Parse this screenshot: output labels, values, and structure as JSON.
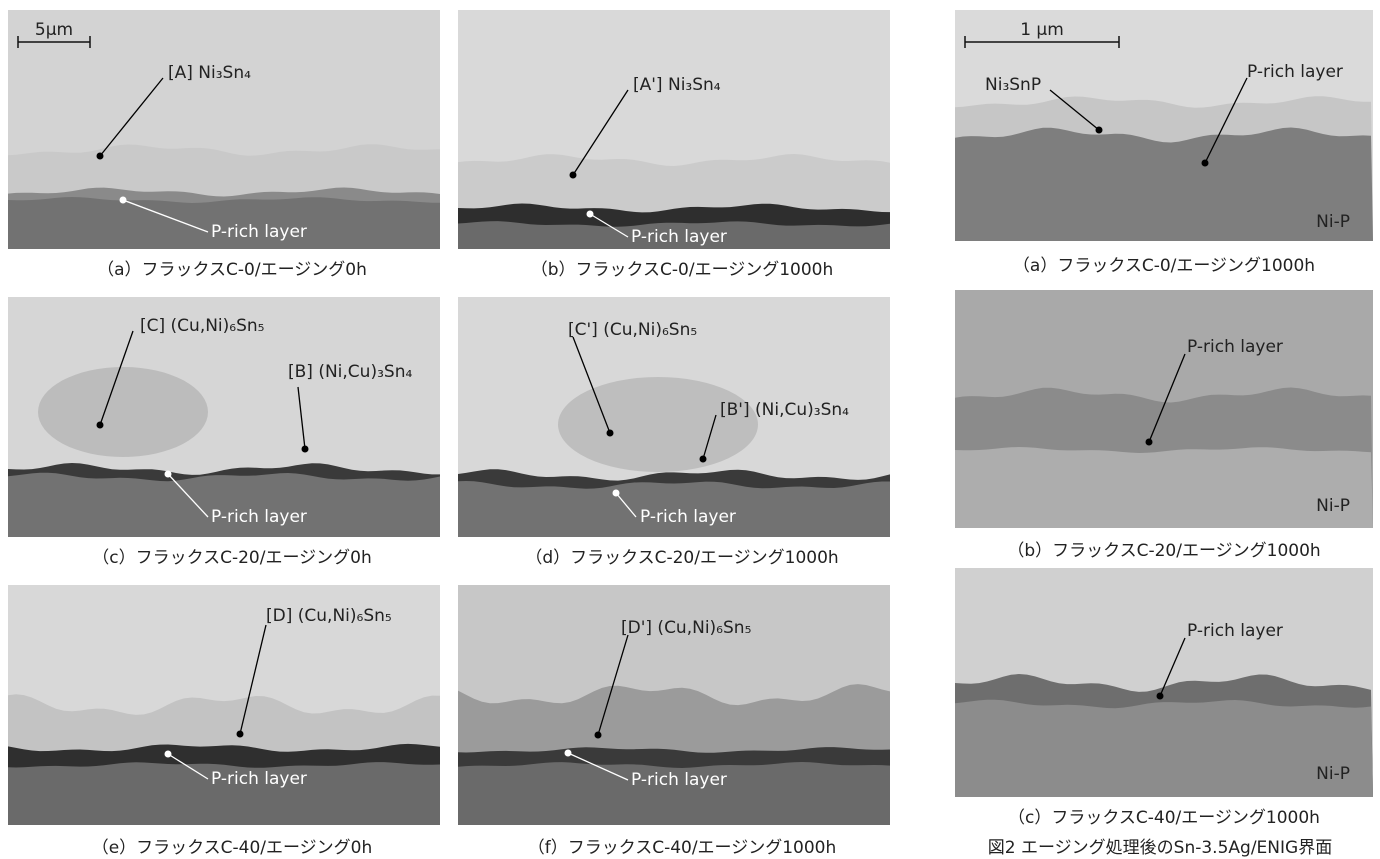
{
  "left_panels": [
    {
      "scale_bar": "5μm",
      "labels": [
        "[A] Ni₃Sn₄",
        "P-rich layer"
      ],
      "caption": "（a）フラックスC-0/エージング0h"
    },
    {
      "labels": [
        "[A'] Ni₃Sn₄",
        "P-rich layer"
      ],
      "caption": "（b）フラックスC-0/エージング1000h"
    },
    {
      "labels": [
        "[C] (Cu,Ni)₆Sn₅",
        "[B] (Ni,Cu)₃Sn₄",
        "P-rich layer"
      ],
      "caption": "（c）フラックスC-20/エージング0h"
    },
    {
      "labels": [
        "[C'] (Cu,Ni)₆Sn₅",
        "[B'] (Ni,Cu)₃Sn₄",
        "P-rich layer"
      ],
      "caption": "（d）フラックスC-20/エージング1000h"
    },
    {
      "labels": [
        "[D] (Cu,Ni)₆Sn₅",
        "P-rich layer"
      ],
      "caption": "（e）フラックスC-40/エージング0h"
    },
    {
      "labels": [
        "[D'] (Cu,Ni)₆Sn₅",
        "P-rich layer"
      ],
      "caption": "（f）フラックスC-40/エージング1000h"
    }
  ],
  "right_panels": [
    {
      "scale_bar": "1 μm",
      "labels": [
        "Ni₃SnP",
        "P-rich layer"
      ],
      "substrate": "Ni-P",
      "caption": "（a）フラックスC-0/エージング1000h"
    },
    {
      "labels": [
        "P-rich layer"
      ],
      "substrate": "Ni-P",
      "caption": "（b）フラックスC-20/エージング1000h"
    },
    {
      "labels": [
        "P-rich layer"
      ],
      "substrate": "Ni-P",
      "caption": "（c）フラックスC-40/エージング1000h"
    }
  ],
  "figure_caption": "図2 エージング処理後のSn-3.5Ag/ENIG界面"
}
